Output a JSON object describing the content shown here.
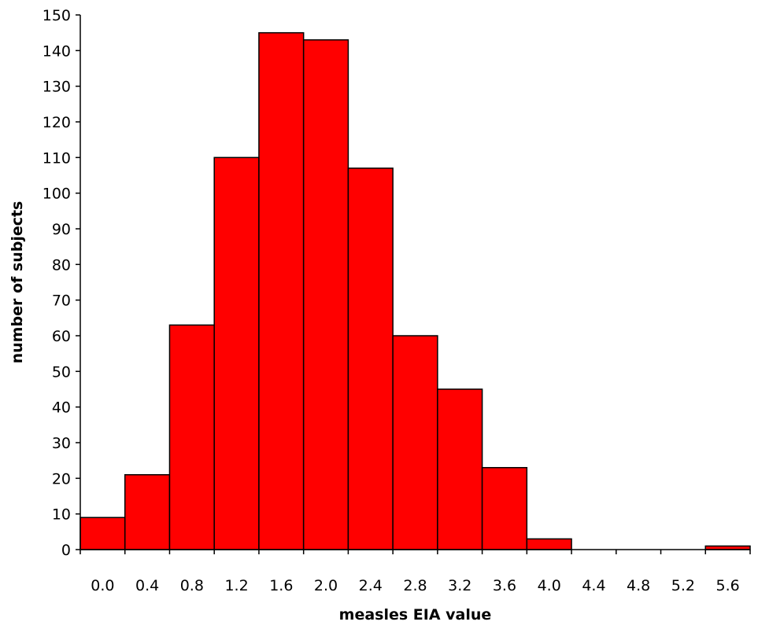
{
  "chart_data": {
    "type": "bar",
    "title": "",
    "xlabel": "measles EIA value",
    "ylabel": "number of subjects",
    "categories": [
      "0.0",
      "0.4",
      "0.8",
      "1.2",
      "1.6",
      "2.0",
      "2.4",
      "2.8",
      "3.2",
      "3.6",
      "4.0",
      "4.4",
      "4.8",
      "5.2",
      "5.6"
    ],
    "values": [
      9,
      21,
      63,
      110,
      145,
      143,
      107,
      60,
      45,
      23,
      3,
      0,
      0,
      0,
      1
    ],
    "ylim": [
      0,
      150
    ],
    "yticks": [
      0,
      10,
      20,
      30,
      40,
      50,
      60,
      70,
      80,
      90,
      100,
      110,
      120,
      130,
      140,
      150
    ],
    "grid": false,
    "legend": "none",
    "bar_color": "#ff0000",
    "bar_edge_color": "#000000"
  }
}
